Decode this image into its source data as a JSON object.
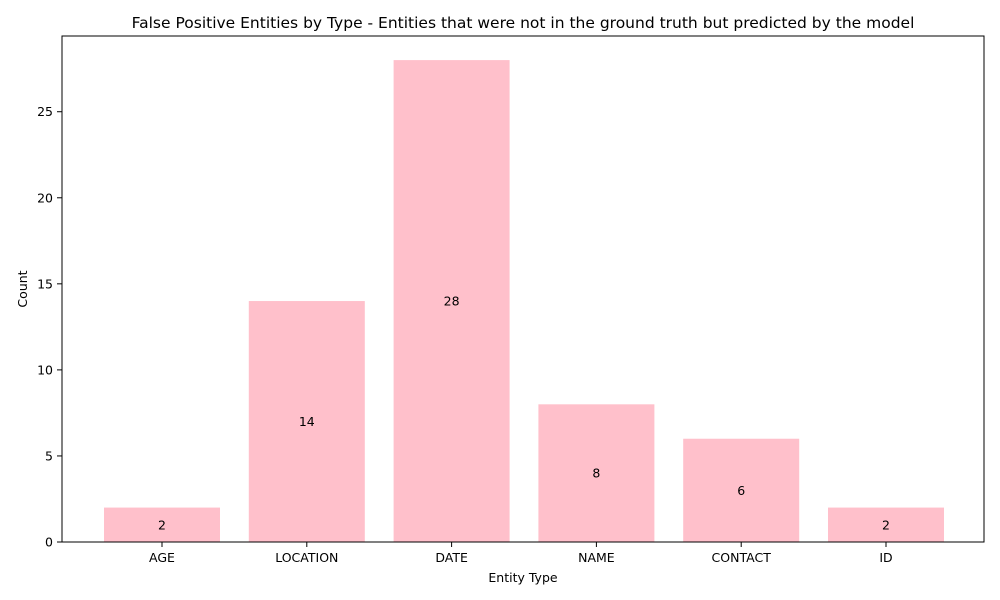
{
  "chart_data": {
    "type": "bar",
    "title": "False Positive Entities by Type - Entities that were not in the ground truth but predicted by the model",
    "xlabel": "Entity Type",
    "ylabel": "Count",
    "categories": [
      "AGE",
      "LOCATION",
      "DATE",
      "NAME",
      "CONTACT",
      "ID"
    ],
    "values": [
      2,
      14,
      28,
      8,
      6,
      2
    ],
    "ylim": [
      0,
      29.4
    ],
    "yticks": [
      0,
      5,
      10,
      15,
      20,
      25
    ],
    "grid": false,
    "legend": "none",
    "bar_color": "#ffc0cb"
  }
}
